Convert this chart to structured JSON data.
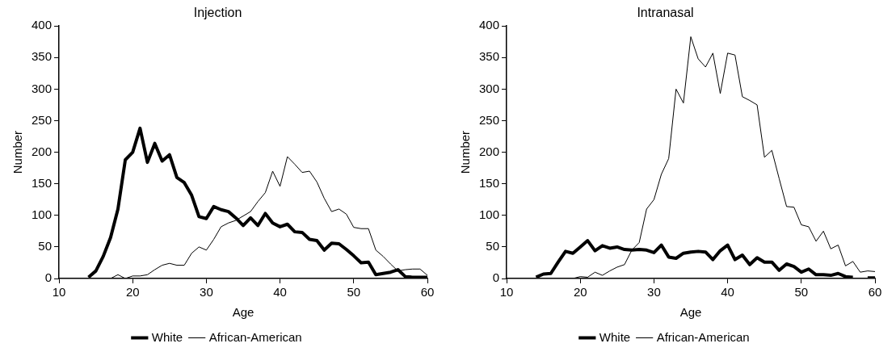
{
  "chart_data": [
    {
      "type": "line",
      "title": "Injection",
      "xlabel": "Age",
      "ylabel": "Number",
      "x": [
        14,
        15,
        16,
        17,
        18,
        19,
        20,
        21,
        22,
        23,
        24,
        25,
        26,
        27,
        28,
        29,
        30,
        31,
        32,
        33,
        34,
        35,
        36,
        37,
        38,
        39,
        40,
        41,
        42,
        43,
        44,
        45,
        46,
        47,
        48,
        49,
        50,
        51,
        52,
        53,
        54,
        55,
        56,
        57,
        58,
        59,
        60
      ],
      "xlim": [
        10,
        60
      ],
      "xticks": [
        10,
        20,
        30,
        40,
        50,
        60
      ],
      "ylim": [
        0,
        400
      ],
      "yticks": [
        0,
        50,
        100,
        150,
        200,
        250,
        300,
        350,
        400
      ],
      "grid": false,
      "legend": "bottom",
      "marker": "none",
      "line_style": "solid",
      "series": [
        {
          "name": "White",
          "color": "#000000",
          "values": [
            2,
            12,
            35,
            65,
            110,
            188,
            200,
            238,
            184,
            214,
            186,
            196,
            160,
            152,
            132,
            98,
            95,
            114,
            109,
            106,
            96,
            84,
            96,
            84,
            103,
            88,
            82,
            86,
            74,
            73,
            62,
            60,
            45,
            56,
            55,
            46,
            36,
            25,
            26,
            6,
            8,
            10,
            14,
            3,
            2,
            2,
            2
          ]
        },
        {
          "name": "African-American",
          "color": "#000000",
          "values": [
            0,
            0,
            0,
            0,
            6,
            0,
            4,
            4,
            6,
            14,
            21,
            24,
            21,
            21,
            40,
            50,
            45,
            62,
            82,
            88,
            92,
            99,
            106,
            122,
            136,
            170,
            146,
            193,
            181,
            168,
            170,
            153,
            127,
            106,
            110,
            102,
            81,
            79,
            79,
            45,
            35,
            23,
            12,
            14,
            15,
            15,
            5
          ]
        }
      ]
    },
    {
      "type": "line",
      "title": "Intranasal",
      "xlabel": "Age",
      "ylabel": "Number",
      "x": [
        14,
        15,
        16,
        17,
        18,
        19,
        20,
        21,
        22,
        23,
        24,
        25,
        26,
        27,
        28,
        29,
        30,
        31,
        32,
        33,
        34,
        35,
        36,
        37,
        38,
        39,
        40,
        41,
        42,
        43,
        44,
        45,
        46,
        47,
        48,
        49,
        50,
        51,
        52,
        53,
        54,
        55,
        56,
        57,
        58,
        59,
        60
      ],
      "xlim": [
        10,
        60
      ],
      "xticks": [
        10,
        20,
        30,
        40,
        50,
        60
      ],
      "ylim": [
        0,
        400
      ],
      "yticks": [
        0,
        50,
        100,
        150,
        200,
        250,
        300,
        350,
        400
      ],
      "grid": false,
      "legend": "bottom",
      "marker": "none",
      "line_style": "solid",
      "series": [
        {
          "name": "White",
          "color": "#000000",
          "values": [
            2,
            7,
            8,
            26,
            43,
            40,
            50,
            60,
            44,
            52,
            48,
            50,
            46,
            45,
            46,
            45,
            41,
            53,
            34,
            32,
            40,
            42,
            43,
            42,
            30,
            44,
            53,
            30,
            37,
            22,
            33,
            26,
            26,
            13,
            23,
            19,
            10,
            15,
            6,
            6,
            5,
            8,
            3,
            2,
            null,
            1,
            1
          ]
        },
        {
          "name": "African-American",
          "color": "#000000",
          "values": [
            0,
            0,
            0,
            0,
            0,
            0,
            3,
            2,
            10,
            5,
            12,
            18,
            22,
            45,
            57,
            110,
            125,
            165,
            190,
            300,
            278,
            383,
            348,
            335,
            357,
            293,
            357,
            354,
            288,
            282,
            275,
            192,
            203,
            158,
            114,
            113,
            85,
            82,
            59,
            75,
            47,
            53,
            20,
            27,
            10,
            12,
            11
          ]
        }
      ]
    }
  ]
}
